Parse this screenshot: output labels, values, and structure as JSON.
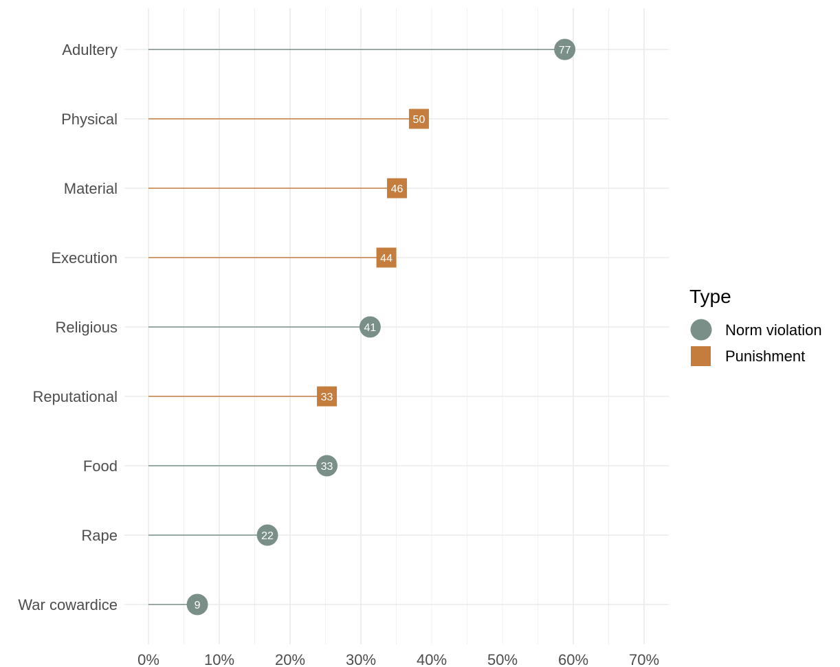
{
  "chart_data": {
    "type": "lollipop",
    "title": "",
    "xlabel": "",
    "ylabel": "",
    "xlim": [
      0,
      0.73
    ],
    "x_ticks": [
      0,
      0.1,
      0.2,
      0.3,
      0.4,
      0.5,
      0.6,
      0.7
    ],
    "x_tick_labels": [
      "0%",
      "10%",
      "20%",
      "30%",
      "40%",
      "50%",
      "60%",
      "70%"
    ],
    "grid": true,
    "legend": {
      "title": "Type",
      "position": "right",
      "entries": [
        {
          "name": "Norm violation",
          "shape": "circle",
          "color": "#7a8f88"
        },
        {
          "name": "Punishment",
          "shape": "square",
          "color": "#c57d3d"
        }
      ]
    },
    "categories": [
      "Adultery",
      "Physical",
      "Material",
      "Execution",
      "Religious",
      "Reputational",
      "Food",
      "Rape",
      "War cowardice"
    ],
    "points": [
      {
        "category": "Adultery",
        "value": 0.588,
        "label": "77",
        "type": "Norm violation"
      },
      {
        "category": "Physical",
        "value": 0.382,
        "label": "50",
        "type": "Punishment"
      },
      {
        "category": "Material",
        "value": 0.351,
        "label": "46",
        "type": "Punishment"
      },
      {
        "category": "Execution",
        "value": 0.336,
        "label": "44",
        "type": "Punishment"
      },
      {
        "category": "Religious",
        "value": 0.313,
        "label": "41",
        "type": "Norm violation"
      },
      {
        "category": "Reputational",
        "value": 0.252,
        "label": "33",
        "type": "Punishment"
      },
      {
        "category": "Food",
        "value": 0.252,
        "label": "33",
        "type": "Norm violation"
      },
      {
        "category": "Rape",
        "value": 0.168,
        "label": "22",
        "type": "Norm violation"
      },
      {
        "category": "War cowardice",
        "value": 0.069,
        "label": "9",
        "type": "Norm violation"
      }
    ]
  }
}
